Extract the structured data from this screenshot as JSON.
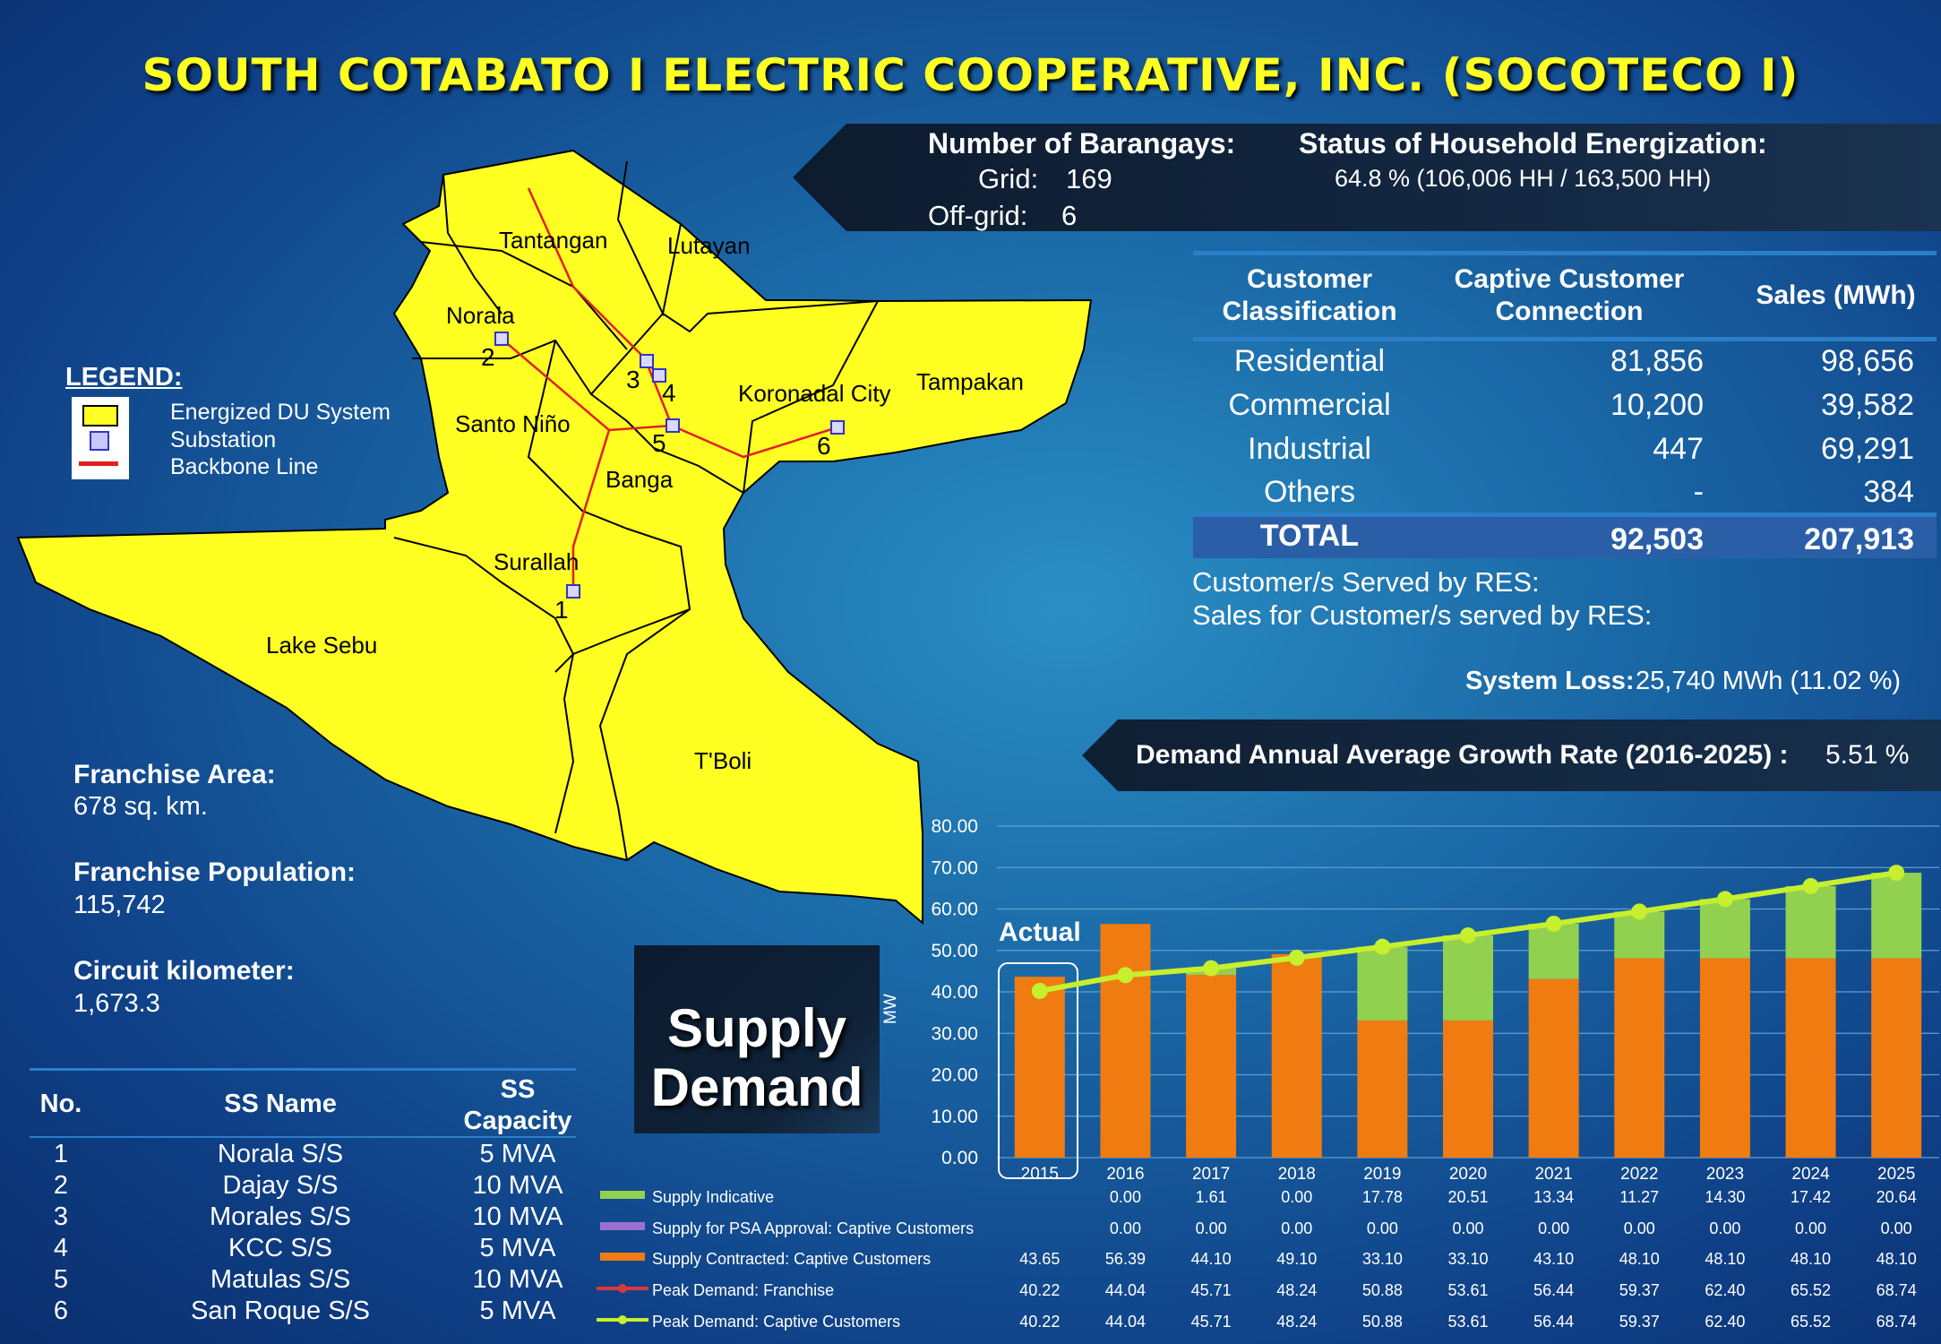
{
  "title": "SOUTH COTABATO I ELECTRIC COOPERATIVE, INC. (SOCOTECO I)",
  "barangays": {
    "heading": "Number of Barangays:",
    "grid_label": "Grid:",
    "grid_value": "169",
    "offgrid_label": "Off-grid:",
    "offgrid_value": "6"
  },
  "energization": {
    "heading": "Status of Household Energization:",
    "value": "64.8 % (106,006 HH / 163,500 HH)"
  },
  "customer_table": {
    "headers": [
      "Customer Classification",
      "Captive Customer Connection",
      "Sales (MWh)"
    ],
    "rows": [
      {
        "cls": "Residential",
        "conn": "81,856",
        "sales": "98,656"
      },
      {
        "cls": "Commercial",
        "conn": "10,200",
        "sales": "39,582"
      },
      {
        "cls": "Industrial",
        "conn": "447",
        "sales": "69,291"
      },
      {
        "cls": "Others",
        "conn": "-",
        "sales": "384"
      }
    ],
    "total": {
      "cls": "TOTAL",
      "conn": "92,503",
      "sales": "207,913"
    }
  },
  "res": {
    "customers_label": "Customer/s Served by RES:",
    "sales_label": "Sales for Customer/s served by RES:"
  },
  "system_loss": {
    "label": "System Loss:",
    "value": "25,740 MWh (11.02 %)"
  },
  "demand_growth": {
    "label": "Demand Annual Average Growth Rate (2016-2025) :",
    "value": "5.51 %"
  },
  "legend": {
    "title": "LEGEND:",
    "items": [
      "Energized DU System",
      "Substation",
      "Backbone Line"
    ]
  },
  "map_labels": [
    "Tantangan",
    "Lutayan",
    "Norala",
    "Koronadal City",
    "Tampakan",
    "Santo Niño",
    "Banga",
    "Surallah",
    "Lake Sebu",
    "T'Boli"
  ],
  "substation_numbers": [
    "1",
    "2",
    "3",
    "4",
    "5",
    "6"
  ],
  "franchise": {
    "area_label": "Franchise Area:",
    "area_value": "678 sq. km.",
    "pop_label": "Franchise Population:",
    "pop_value": "115,742",
    "circuit_label": "Circuit kilometer:",
    "circuit_value": "1,673.3"
  },
  "supply_demand_label": [
    "Supply",
    "Demand"
  ],
  "ss_table": {
    "headers": [
      "No.",
      "SS Name",
      "SS",
      "Capacity"
    ],
    "rows": [
      {
        "no": "1",
        "name": "Norala S/S",
        "cap": "5 MVA"
      },
      {
        "no": "2",
        "name": "Dajay S/S",
        "cap": "10 MVA"
      },
      {
        "no": "3",
        "name": "Morales S/S",
        "cap": "10 MVA"
      },
      {
        "no": "4",
        "name": "KCC S/S",
        "cap": "5 MVA"
      },
      {
        "no": "5",
        "name": "Matulas S/S",
        "cap": "10 MVA"
      },
      {
        "no": "6",
        "name": "San Roque S/S",
        "cap": "5 MVA"
      }
    ]
  },
  "colors": {
    "title": "#ffff22",
    "map_fill": "#ffff22",
    "contracted": "#f07b10",
    "indicative": "#92d050",
    "peak_line": "#c6ef2e",
    "psa": "#9b6fd1",
    "peak_franchise": "#d83a3a"
  },
  "chart_data": {
    "type": "bar",
    "categories": [
      "2015",
      "2016",
      "2017",
      "2018",
      "2019",
      "2020",
      "2021",
      "2022",
      "2023",
      "2024",
      "2025"
    ],
    "ylabel": "MW",
    "ylim": [
      0,
      80
    ],
    "yticks": [
      "0.00",
      "10.00",
      "20.00",
      "30.00",
      "40.00",
      "50.00",
      "60.00",
      "70.00",
      "80.00"
    ],
    "actual_label": "Actual",
    "series": [
      {
        "name": "Supply Indicative",
        "kind": "bar",
        "values": [
          null,
          0.0,
          1.61,
          0.0,
          17.78,
          20.51,
          13.34,
          11.27,
          14.3,
          17.42,
          20.64
        ],
        "labels": [
          "",
          "0.00",
          "1.61",
          "0.00",
          "17.78",
          "20.51",
          "13.34",
          "11.27",
          "14.30",
          "17.42",
          "20.64"
        ]
      },
      {
        "name": "Supply for PSA Approval:  Captive Customers",
        "kind": "bar",
        "values": [
          null,
          0.0,
          0.0,
          0.0,
          0.0,
          0.0,
          0.0,
          0.0,
          0.0,
          0.0,
          0.0
        ],
        "labels": [
          "",
          "0.00",
          "0.00",
          "0.00",
          "0.00",
          "0.00",
          "0.00",
          "0.00",
          "0.00",
          "0.00",
          "0.00"
        ]
      },
      {
        "name": "Supply Contracted:  Captive Customers",
        "kind": "bar",
        "values": [
          43.65,
          56.39,
          44.1,
          49.1,
          33.1,
          33.1,
          43.1,
          48.1,
          48.1,
          48.1,
          48.1
        ],
        "labels": [
          "43.65",
          "56.39",
          "44.10",
          "49.10",
          "33.10",
          "33.10",
          "43.10",
          "48.10",
          "48.10",
          "48.10",
          "48.10"
        ]
      },
      {
        "name": "Peak Demand:  Franchise",
        "kind": "line",
        "values": [
          40.22,
          44.04,
          45.71,
          48.24,
          50.88,
          53.61,
          56.44,
          59.37,
          62.4,
          65.52,
          68.74
        ],
        "labels": [
          "40.22",
          "44.04",
          "45.71",
          "48.24",
          "50.88",
          "53.61",
          "56.44",
          "59.37",
          "62.40",
          "65.52",
          "68.74"
        ]
      },
      {
        "name": "Peak Demand:  Captive Customers",
        "kind": "line",
        "values": [
          40.22,
          44.04,
          45.71,
          48.24,
          50.88,
          53.61,
          56.44,
          59.37,
          62.4,
          65.52,
          68.74
        ],
        "labels": [
          "40.22",
          "44.04",
          "45.71",
          "48.24",
          "50.88",
          "53.61",
          "56.44",
          "59.37",
          "62.40",
          "65.52",
          "68.74"
        ]
      }
    ]
  }
}
